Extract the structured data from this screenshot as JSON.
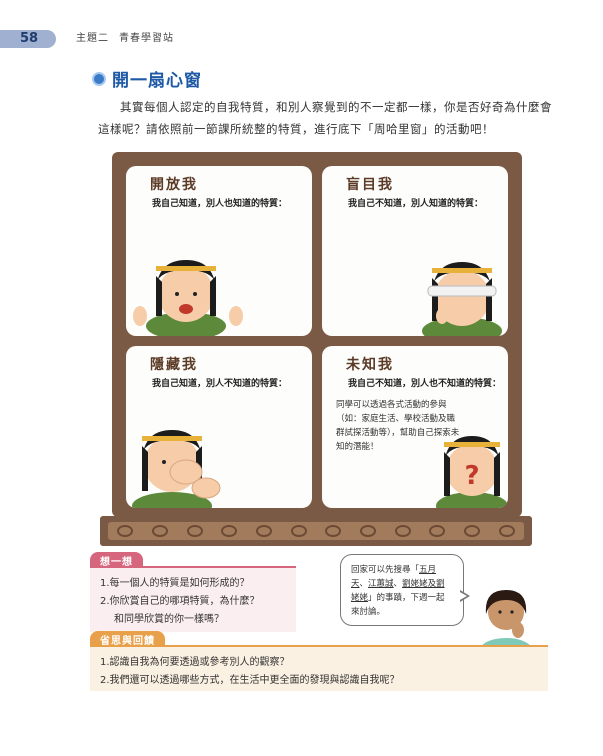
{
  "header": {
    "page_number": "58",
    "chapter": "主題二",
    "chapter_title": "青春學習站"
  },
  "section": {
    "title": "開一扇心窗",
    "intro": "其實每個人認定的自我特質，和別人察覺到的不一定都一樣，你是否好奇為什麼會這樣呢？請依照前一節課所統整的特質，進行底下「周哈里窗」的活動吧！"
  },
  "window": {
    "panes": [
      {
        "title": "開放我",
        "subtitle": "我自己知道，別人也知道的特質："
      },
      {
        "title": "盲目我",
        "subtitle": "我自己不知道，別人知道的特質："
      },
      {
        "title": "隱藏我",
        "subtitle": "我自己知道，別人不知道的特質："
      },
      {
        "title": "未知我",
        "subtitle": "我自己不知道，別人也不知道的特質：",
        "note": "同學可以透過各式活動的參與（如：家庭生活、學校活動及職群試探活動等），幫助自己探索未知的潛能！"
      }
    ]
  },
  "think": {
    "label": "想一想",
    "items": [
      "1.每一個人的特質是如何形成的？",
      "2.你欣賞自己的哪項特質，為什麼？",
      "和同學欣賞的你一樣嗎？"
    ]
  },
  "bubble": {
    "t1": "回家可以先搜尋「",
    "u1": "五月天",
    "t2": "、",
    "u2": "江蕙誠",
    "t3": "、",
    "u3": "劉姥姥及劉姥姥",
    "t4": "」的事蹟，下週一起來討論。"
  },
  "reflect": {
    "label": "省思與回饋",
    "items": [
      "1.認識自我為何要透過或參考別人的觀察？",
      "2.我們還可以透過哪些方式，在生活中更全面的發現與認識自我呢？"
    ]
  },
  "colors": {
    "frame": "#7a5a44",
    "title_blue": "#1e5aa6",
    "think_pink": "#d6657e",
    "reflect_orange": "#e8a04a"
  }
}
